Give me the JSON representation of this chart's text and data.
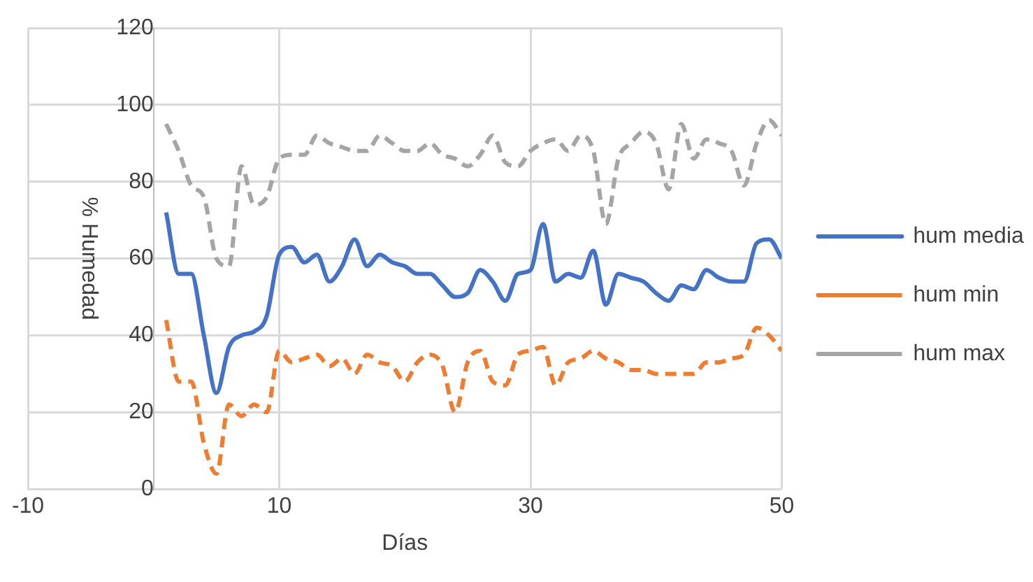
{
  "chart_data": {
    "type": "line",
    "xlabel": "Días",
    "ylabel": "% Humedad",
    "x": [
      1,
      2,
      3,
      4,
      5,
      6,
      7,
      8,
      9,
      10,
      11,
      12,
      13,
      14,
      15,
      16,
      17,
      18,
      19,
      20,
      21,
      22,
      23,
      24,
      25,
      26,
      27,
      28,
      29,
      30,
      31,
      32,
      33,
      34,
      35,
      36,
      37,
      38,
      39,
      40,
      41,
      42,
      43,
      44,
      45,
      46,
      47,
      48,
      49,
      50
    ],
    "series": [
      {
        "name": "hum media",
        "color": "#4472c4",
        "line_style": "solid",
        "values": [
          72,
          56,
          56,
          40,
          25,
          37,
          40,
          41,
          45,
          61,
          63,
          59,
          61,
          54,
          58,
          65,
          58,
          61,
          59,
          58,
          56,
          56,
          53,
          50,
          51,
          57,
          54,
          49,
          56,
          57,
          69,
          54,
          56,
          55,
          62,
          48,
          56,
          55,
          54,
          51,
          49,
          53,
          52,
          57,
          55,
          54,
          54,
          64,
          65,
          60
        ]
      },
      {
        "name": "hum min",
        "color": "#ed7d31",
        "line_style": "dashed",
        "values": [
          44,
          28,
          28,
          12,
          4,
          22,
          19,
          22,
          20,
          36,
          33,
          34,
          35,
          32,
          34,
          30,
          35,
          33,
          32,
          28,
          33,
          35,
          32,
          20,
          33,
          36,
          28,
          27,
          35,
          36,
          37,
          27,
          33,
          34,
          36,
          34,
          33,
          31,
          31,
          30,
          30,
          30,
          30,
          33,
          33,
          34,
          35,
          42,
          40,
          36
        ]
      },
      {
        "name": "hum max",
        "color": "#a5a5a5",
        "line_style": "dashed",
        "values": [
          95,
          88,
          79,
          76,
          60,
          58,
          84,
          74,
          76,
          86,
          87,
          87,
          92,
          90,
          89,
          88,
          88,
          92,
          90,
          88,
          88,
          90,
          87,
          86,
          84,
          87,
          92,
          85,
          84,
          88,
          90,
          91,
          88,
          92,
          88,
          69,
          86,
          90,
          93,
          90,
          78,
          95,
          86,
          91,
          90,
          88,
          79,
          90,
          96,
          92
        ]
      }
    ],
    "xlim": [
      -10,
      50
    ],
    "xticks": [
      -10,
      10,
      30,
      50
    ],
    "ylim": [
      0,
      120
    ],
    "yticks": [
      0,
      20,
      40,
      60,
      80,
      100,
      120
    ],
    "grid": true,
    "legend": "right",
    "marker": "none"
  }
}
